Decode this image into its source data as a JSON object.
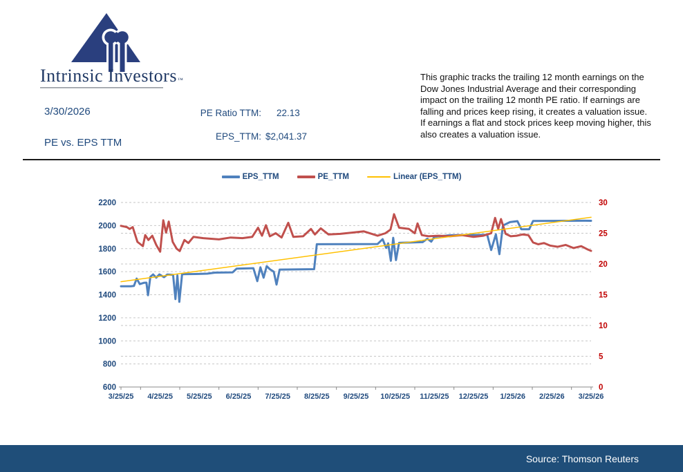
{
  "header": {
    "logo_text": "Intrinsic Investors",
    "logo_trademark": "™",
    "date": "3/30/2026",
    "report_title": "PE vs. EPS TTM",
    "pe_label": "PE Ratio TTM:",
    "pe_value": "22.13",
    "eps_label": "EPS_TTM:",
    "eps_value": "$2,041.37",
    "description": "This graphic tracks the trailing 12 month earnings on the Dow Jones Industrial Average and their corresponding impact on the trailing 12 month PE ratio.  If earnings are falling and prices keep rising, it creates a valuation issue.  If earnings a flat and stock prices keep moving higher, this also creates a valuation issue."
  },
  "footer": {
    "source": "Source: Thomson Reuters"
  },
  "colors": {
    "navy_text": "#1F497D",
    "logo_navy": "#2A3F7E",
    "footer_bar": "#1F4E79",
    "eps_line": "#4F81BD",
    "pe_line": "#C0504D",
    "trend_line": "#FFC000",
    "right_axis_text": "#C00000",
    "gridline": "#C6C6C6",
    "axis_line": "#898989"
  },
  "chart_data": {
    "type": "line",
    "title": "",
    "xlabel": "",
    "ylabel_left": "",
    "ylabel_right": "",
    "grid": true,
    "legend_position": "top-center",
    "x_axis": {
      "t_min": 0,
      "t_max": 12,
      "labels": [
        "3/25/25",
        "4/25/25",
        "5/25/25",
        "6/25/25",
        "7/25/25",
        "8/25/25",
        "9/25/25",
        "10/25/25",
        "11/25/25",
        "12/25/25",
        "1/25/26",
        "2/25/26",
        "3/25/26"
      ]
    },
    "y_left": {
      "min": 600,
      "max": 2200,
      "ticks": [
        2200,
        2000,
        1800,
        1600,
        1400,
        1200,
        1000,
        800,
        600
      ],
      "color": "#1F497D"
    },
    "y_right": {
      "min": 0,
      "max": 30,
      "ticks": [
        30,
        25,
        20,
        15,
        10,
        5,
        0
      ],
      "color": "#C00000"
    },
    "series": [
      {
        "name": "EPS_TTM",
        "axis": "left",
        "color": "#4F81BD",
        "width": 3,
        "points": [
          [
            0,
            1473
          ],
          [
            0.25,
            1474
          ],
          [
            0.33,
            1476
          ],
          [
            0.4,
            1540
          ],
          [
            0.48,
            1492
          ],
          [
            0.58,
            1503
          ],
          [
            0.65,
            1505
          ],
          [
            0.69,
            1396
          ],
          [
            0.75,
            1556
          ],
          [
            0.82,
            1576
          ],
          [
            0.9,
            1548
          ],
          [
            0.98,
            1576
          ],
          [
            1.1,
            1552
          ],
          [
            1.18,
            1575
          ],
          [
            1.33,
            1572
          ],
          [
            1.39,
            1362
          ],
          [
            1.44,
            1568
          ],
          [
            1.49,
            1338
          ],
          [
            1.56,
            1578
          ],
          [
            1.9,
            1580
          ],
          [
            2.2,
            1583
          ],
          [
            2.4,
            1592
          ],
          [
            2.85,
            1594
          ],
          [
            2.95,
            1626
          ],
          [
            3.38,
            1630
          ],
          [
            3.48,
            1518
          ],
          [
            3.56,
            1638
          ],
          [
            3.64,
            1548
          ],
          [
            3.72,
            1648
          ],
          [
            3.8,
            1622
          ],
          [
            3.9,
            1600
          ],
          [
            3.97,
            1488
          ],
          [
            4.05,
            1618
          ],
          [
            4.93,
            1622
          ],
          [
            5.0,
            1838
          ],
          [
            6.55,
            1840
          ],
          [
            6.68,
            1882
          ],
          [
            6.77,
            1806
          ],
          [
            6.82,
            1846
          ],
          [
            6.89,
            1694
          ],
          [
            6.95,
            1894
          ],
          [
            7.02,
            1700
          ],
          [
            7.1,
            1850
          ],
          [
            7.7,
            1856
          ],
          [
            7.82,
            1886
          ],
          [
            7.92,
            1860
          ],
          [
            8.0,
            1902
          ],
          [
            8.4,
            1916
          ],
          [
            9.35,
            1920
          ],
          [
            9.45,
            1788
          ],
          [
            9.57,
            1924
          ],
          [
            9.66,
            1752
          ],
          [
            9.75,
            2000
          ],
          [
            9.93,
            2030
          ],
          [
            10.12,
            2038
          ],
          [
            10.22,
            1968
          ],
          [
            10.42,
            1968
          ],
          [
            10.52,
            2040
          ],
          [
            11.85,
            2042
          ],
          [
            12,
            2041.37
          ]
        ]
      },
      {
        "name": "PE_TTM",
        "axis": "right",
        "color": "#C0504D",
        "width": 3,
        "points": [
          [
            0,
            26.2
          ],
          [
            0.15,
            26.0
          ],
          [
            0.22,
            25.7
          ],
          [
            0.3,
            26.0
          ],
          [
            0.42,
            23.6
          ],
          [
            0.5,
            23.2
          ],
          [
            0.56,
            22.9
          ],
          [
            0.62,
            24.7
          ],
          [
            0.7,
            23.9
          ],
          [
            0.8,
            24.6
          ],
          [
            0.9,
            23.1
          ],
          [
            1.0,
            22.0
          ],
          [
            1.08,
            27.1
          ],
          [
            1.15,
            25.1
          ],
          [
            1.22,
            26.9
          ],
          [
            1.32,
            23.6
          ],
          [
            1.42,
            22.5
          ],
          [
            1.5,
            22.1
          ],
          [
            1.62,
            23.9
          ],
          [
            1.72,
            23.4
          ],
          [
            1.85,
            24.4
          ],
          [
            2.1,
            24.2
          ],
          [
            2.5,
            24.0
          ],
          [
            2.8,
            24.3
          ],
          [
            3.1,
            24.2
          ],
          [
            3.35,
            24.4
          ],
          [
            3.5,
            25.9
          ],
          [
            3.6,
            24.6
          ],
          [
            3.7,
            26.3
          ],
          [
            3.8,
            24.5
          ],
          [
            3.95,
            25.0
          ],
          [
            4.1,
            24.3
          ],
          [
            4.27,
            26.7
          ],
          [
            4.4,
            24.4
          ],
          [
            4.65,
            24.5
          ],
          [
            4.85,
            25.7
          ],
          [
            4.95,
            24.8
          ],
          [
            5.1,
            25.8
          ],
          [
            5.3,
            24.8
          ],
          [
            5.6,
            24.9
          ],
          [
            5.9,
            25.1
          ],
          [
            6.2,
            25.3
          ],
          [
            6.55,
            24.6
          ],
          [
            6.75,
            25.0
          ],
          [
            6.88,
            25.6
          ],
          [
            6.97,
            28.1
          ],
          [
            7.1,
            25.9
          ],
          [
            7.35,
            25.7
          ],
          [
            7.5,
            25.0
          ],
          [
            7.57,
            26.6
          ],
          [
            7.68,
            24.7
          ],
          [
            7.85,
            24.5
          ],
          [
            8.1,
            24.6
          ],
          [
            8.4,
            24.5
          ],
          [
            8.7,
            24.7
          ],
          [
            9.0,
            24.4
          ],
          [
            9.25,
            24.6
          ],
          [
            9.45,
            25.0
          ],
          [
            9.55,
            27.5
          ],
          [
            9.63,
            25.7
          ],
          [
            9.7,
            27.3
          ],
          [
            9.82,
            24.9
          ],
          [
            9.95,
            24.5
          ],
          [
            10.1,
            24.6
          ],
          [
            10.25,
            24.8
          ],
          [
            10.4,
            24.7
          ],
          [
            10.52,
            23.5
          ],
          [
            10.65,
            23.2
          ],
          [
            10.8,
            23.4
          ],
          [
            10.95,
            23.0
          ],
          [
            11.15,
            22.8
          ],
          [
            11.35,
            23.1
          ],
          [
            11.55,
            22.6
          ],
          [
            11.75,
            22.9
          ],
          [
            11.9,
            22.4
          ],
          [
            12,
            22.13
          ]
        ]
      },
      {
        "name": "Linear (EPS_TTM)",
        "axis": "left",
        "color": "#FFC000",
        "width": 1.5,
        "points": [
          [
            0,
            1513
          ],
          [
            12,
            2072
          ]
        ]
      }
    ]
  }
}
